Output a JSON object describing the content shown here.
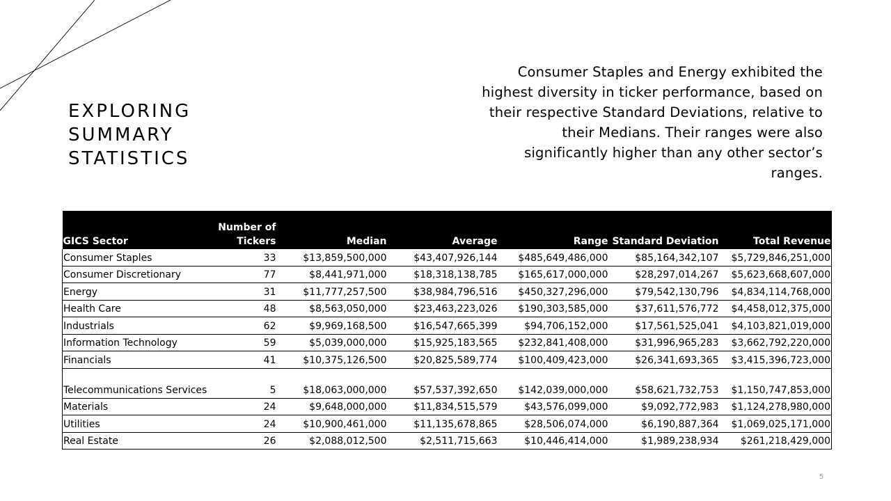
{
  "title_lines": [
    "EXPLORING",
    "SUMMARY",
    "STATISTICS"
  ],
  "summary_text": "Consumer Staples and Energy exhibited the highest diversity in ticker performance, based on their respective Standard Deviations, relative to their Medians. Their ranges were also significantly higher than any other sector’s ranges.",
  "table": {
    "headers": [
      "GICS Sector",
      "Number of Tickers",
      "Median",
      "Average",
      "Range",
      "Standard Deviation",
      "Total Revenue"
    ],
    "rows": [
      [
        "Consumer Staples",
        "33",
        "$13,859,500,000",
        "$43,407,926,144",
        "$485,649,486,000",
        "$85,164,342,107",
        "$5,729,846,251,000"
      ],
      [
        "Consumer Discretionary",
        "77",
        "$8,441,971,000",
        "$18,318,138,785",
        "$165,617,000,000",
        "$28,297,014,267",
        "$5,623,668,607,000"
      ],
      [
        "Energy",
        "31",
        "$11,777,257,500",
        "$38,984,796,516",
        "$450,327,296,000",
        "$79,542,130,796",
        "$4,834,114,768,000"
      ],
      [
        "Health Care",
        "48",
        "$8,563,050,000",
        "$23,463,223,026",
        "$190,303,585,000",
        "$37,611,576,772",
        "$4,458,012,375,000"
      ],
      [
        "Industrials",
        "62",
        "$9,969,168,500",
        "$16,547,665,399",
        "$94,706,152,000",
        "$17,561,525,041",
        "$4,103,821,019,000"
      ],
      [
        "Information Technology",
        "59",
        "$5,039,000,000",
        "$15,925,183,565",
        "$232,841,408,000",
        "$31,996,965,283",
        "$3,662,792,220,000"
      ],
      [
        "Financials",
        "41",
        "$10,375,126,500",
        "$20,825,589,774",
        "$100,409,423,000",
        "$26,341,693,365",
        "$3,415,396,723,000"
      ],
      [
        "Telecommunications Services",
        "5",
        "$18,063,000,000",
        "$57,537,392,650",
        "$142,039,000,000",
        "$58,621,732,753",
        "$1,150,747,853,000"
      ],
      [
        "Materials",
        "24",
        "$9,648,000,000",
        "$11,834,515,579",
        "$43,576,099,000",
        "$9,092,772,983",
        "$1,124,278,980,000"
      ],
      [
        "Utilities",
        "24",
        "$10,900,461,000",
        "$11,135,678,865",
        "$28,506,074,000",
        "$6,190,887,364",
        "$1,069,025,171,000"
      ],
      [
        "Real Estate",
        "26",
        "$2,088,012,500",
        "$2,511,715,663",
        "$10,446,414,000",
        "$1,989,238,934",
        "$261,218,429,000"
      ]
    ]
  },
  "page_number": "5"
}
